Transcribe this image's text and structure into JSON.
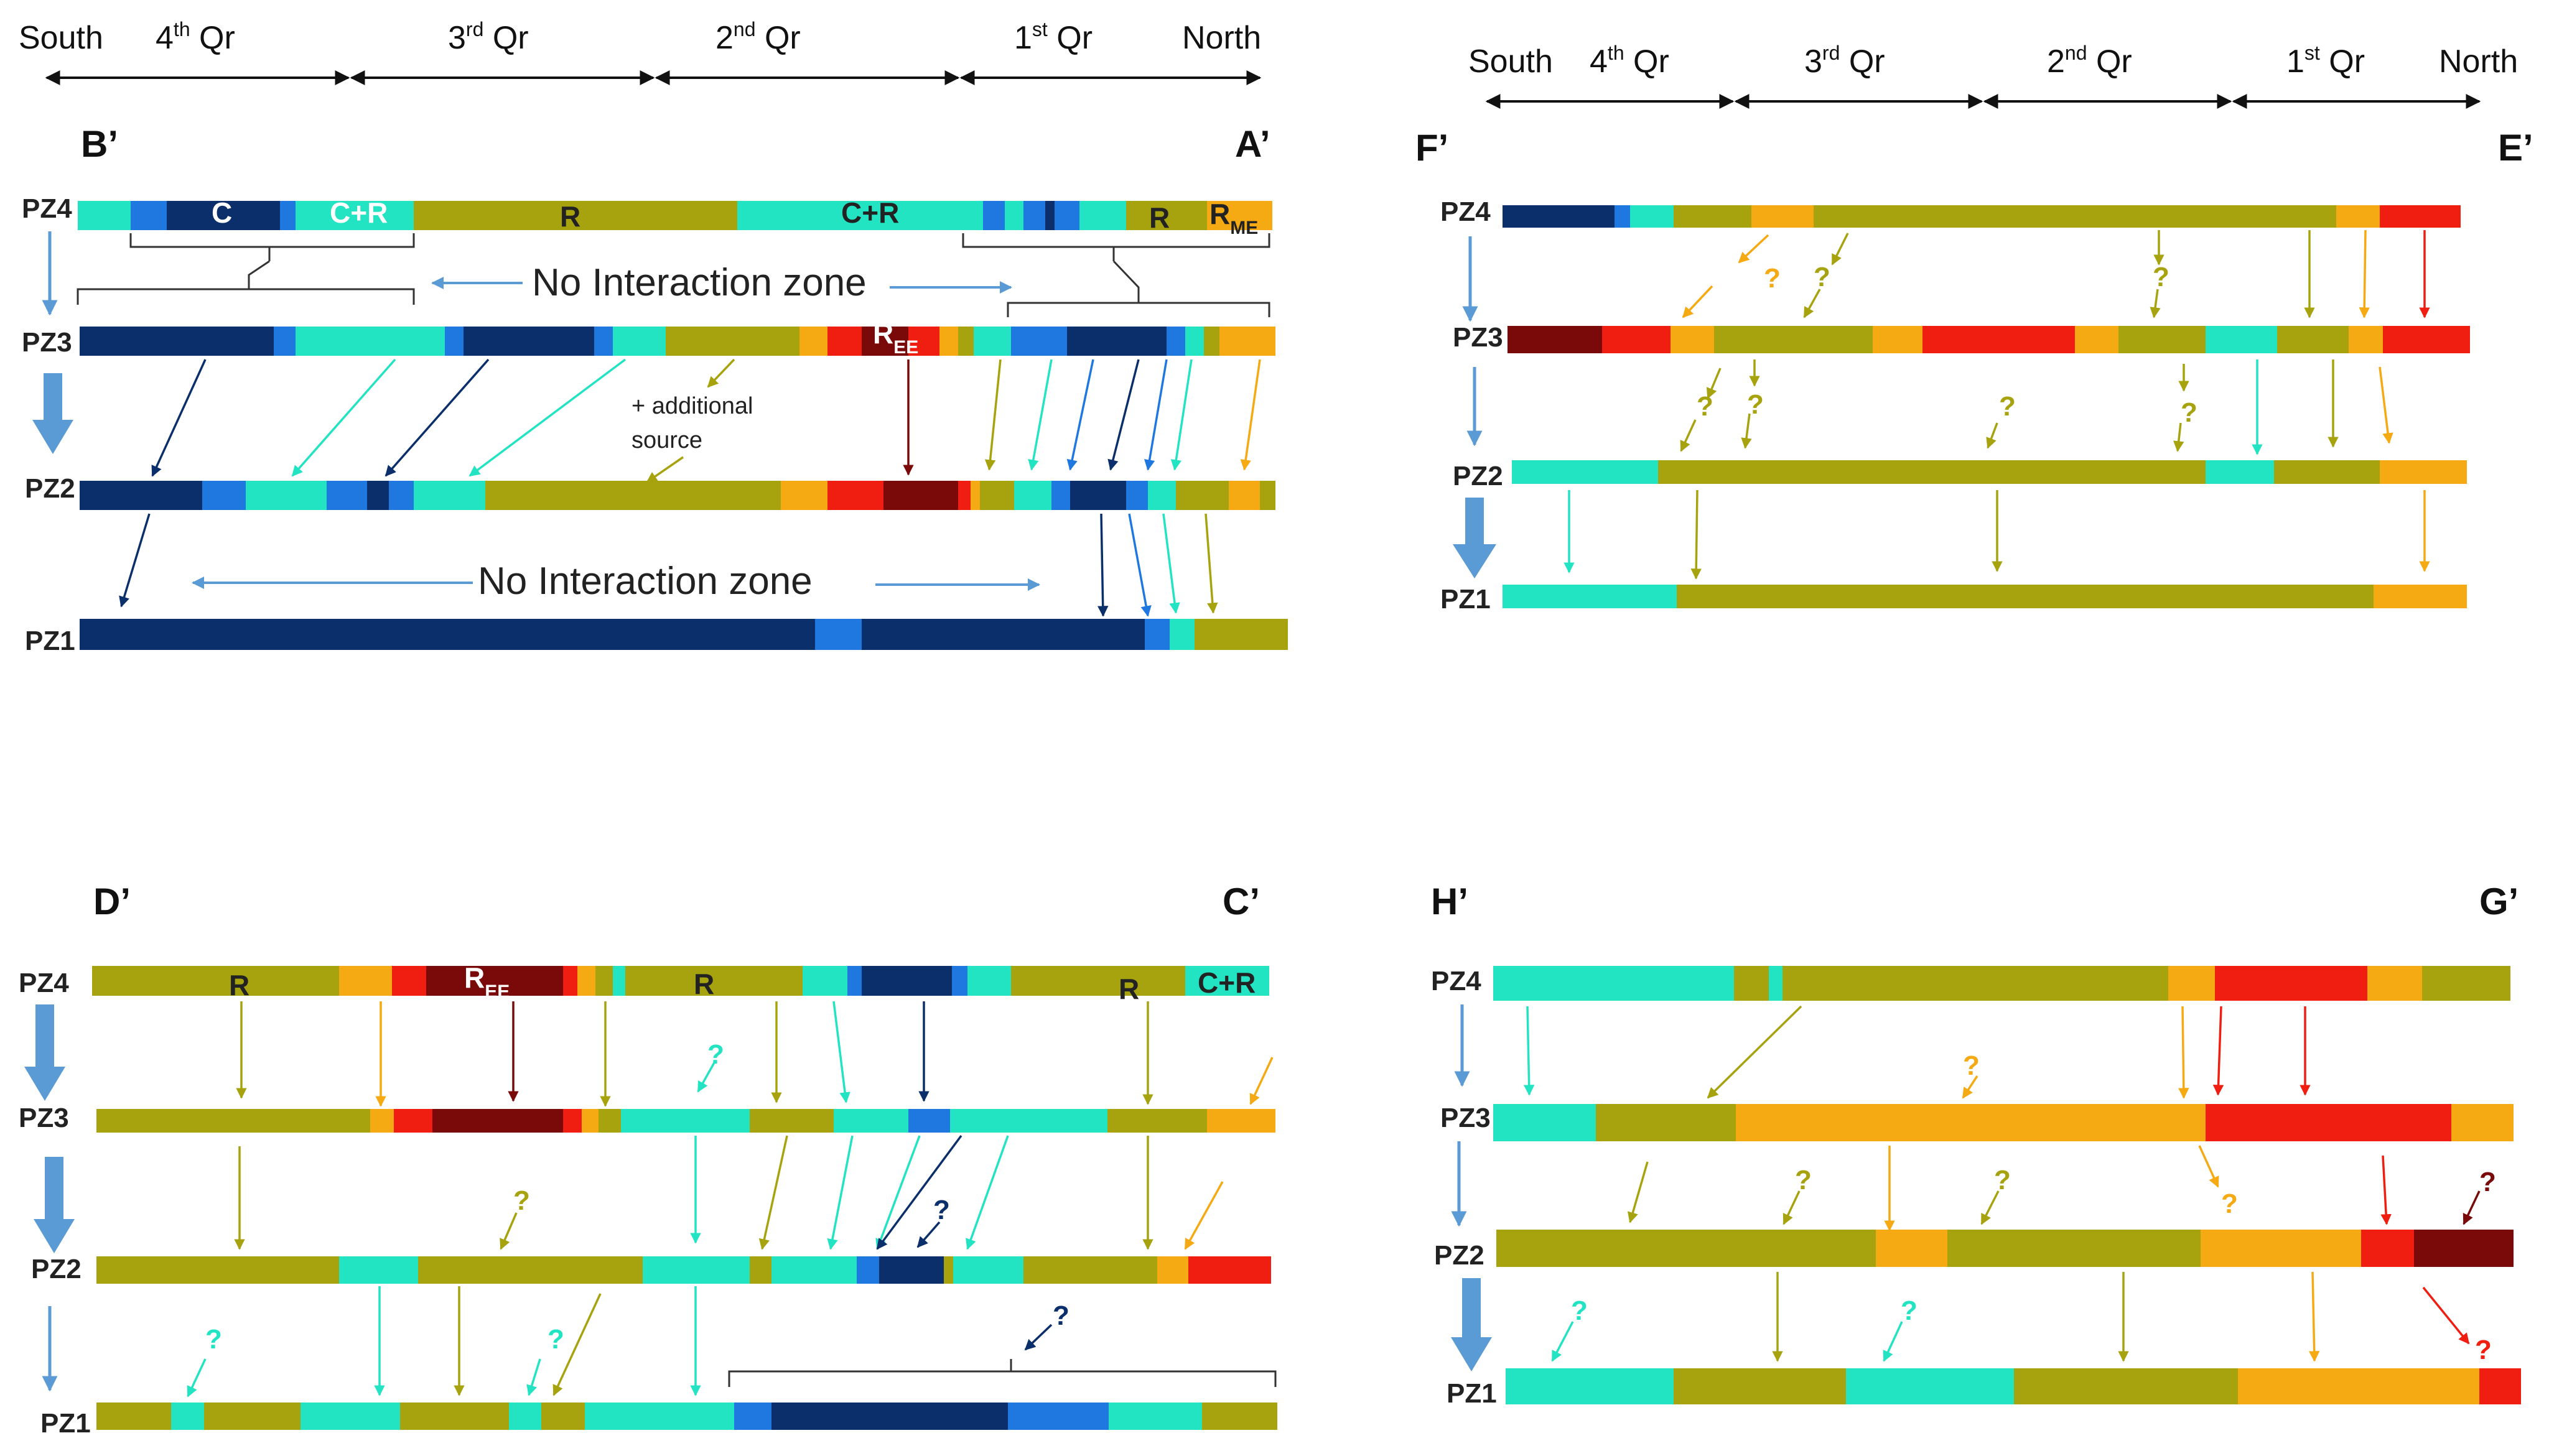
{
  "colors": {
    "C": "#0b2f6b",
    "Cb": "#1f78e0",
    "CR": "#22e3c2",
    "R": "#a6a30f",
    "O": "#f5a912",
    "Red": "#f01e10",
    "DR": "#7a0a0a"
  },
  "header": {
    "south": "South",
    "north": "North",
    "q4": "4",
    "q3": "3",
    "q2": "2",
    "q1": "1",
    "th": "th",
    "rd": "rd",
    "nd": "nd",
    "st": "st",
    "qr": " Qr"
  },
  "pz_labels": [
    "PZ4",
    "PZ3",
    "PZ2",
    "PZ1"
  ],
  "texts": {
    "no_interaction": "No Interaction zone",
    "additional_1": "+ additional",
    "additional_2": "source",
    "question": "?",
    "C": "C",
    "CR": "C+R",
    "R": "R",
    "R_base": "R",
    "ME": "ME",
    "EE": "EE"
  },
  "panels": {
    "ba": {
      "left": "B’",
      "right": "A’"
    },
    "fe": {
      "left": "F’",
      "right": "E’"
    },
    "dc": {
      "left": "D’",
      "right": "C’"
    },
    "hg": {
      "left": "H’",
      "right": "G’"
    }
  }
}
